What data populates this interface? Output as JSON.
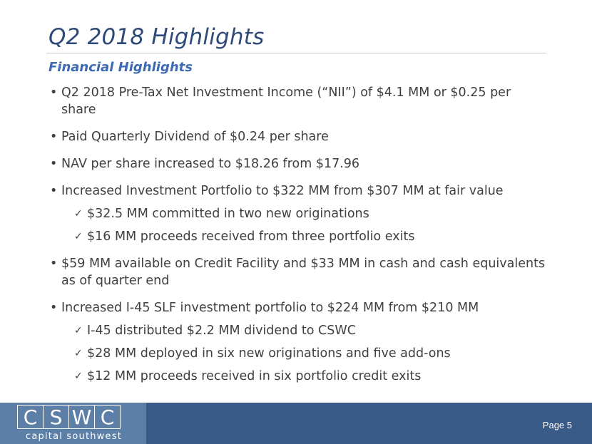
{
  "slide": {
    "title": "Q2 2018 Highlights",
    "section_heading": "Financial Highlights",
    "bullets": [
      {
        "text": "Q2 2018 Pre-Tax Net Investment Income (“NII”) of $4.1 MM or $0.25 per share"
      },
      {
        "text": "Paid Quarterly Dividend of $0.24 per share"
      },
      {
        "text": "NAV per share increased to $18.26 from $17.96"
      },
      {
        "text": "Increased Investment Portfolio to $322 MM from $307 MM at fair value",
        "subs": [
          "$32.5 MM committed in two new originations",
          "$16 MM proceeds received from three portfolio exits"
        ]
      },
      {
        "text": "$59 MM available on Credit Facility and $33 MM in cash and cash equivalents as of quarter end"
      },
      {
        "text": "Increased I-45 SLF investment portfolio to $224 MM from $210 MM",
        "subs": [
          "I-45 distributed $2.2 MM dividend to CSWC",
          "$28 MM deployed in six new originations and five add-ons",
          "$12 MM proceeds received in six portfolio credit exits"
        ]
      }
    ]
  },
  "footer": {
    "logo_letters": [
      "C",
      "S",
      "W",
      "C"
    ],
    "logo_tagline": "capital southwest",
    "page_label": "Page 5"
  },
  "colors": {
    "title": "#2e4a78",
    "heading": "#3d6ab0",
    "footer_band": "#3a5a88",
    "logo_box": "#5b7fa6"
  },
  "icons": {
    "bullet": "bullet-dot-icon",
    "sub_bullet": "checkmark-icon"
  }
}
